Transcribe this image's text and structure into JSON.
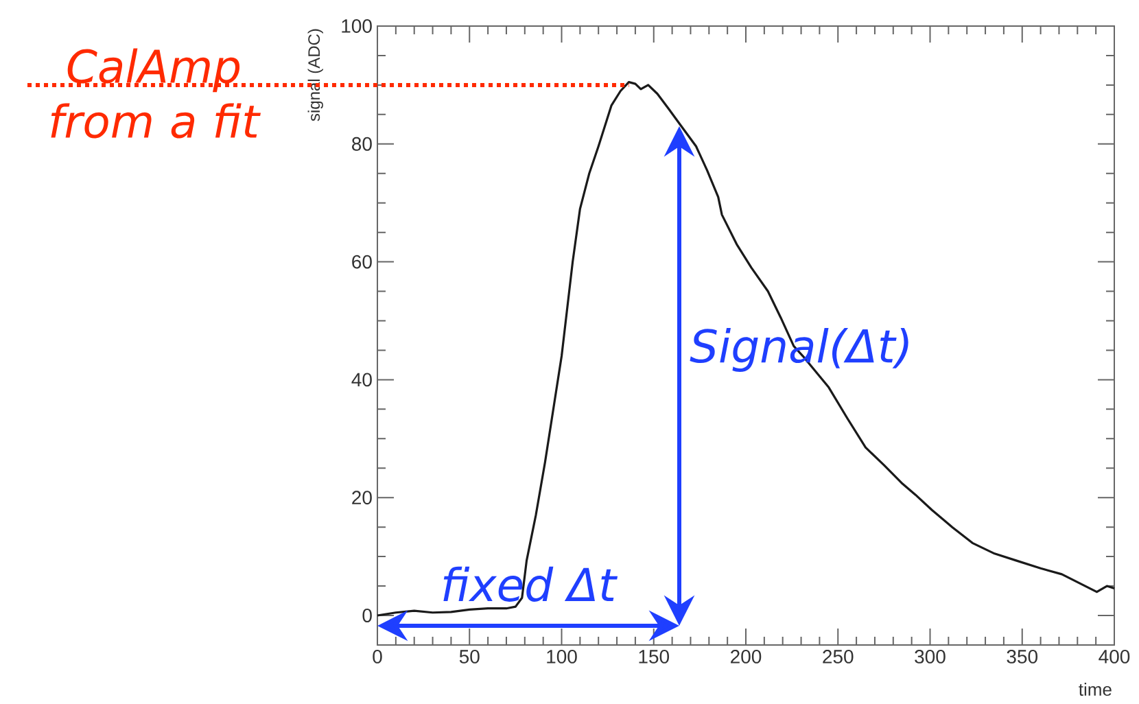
{
  "chart_data": {
    "type": "line",
    "xlabel": "time",
    "ylabel": "signal (ADC)",
    "x": [
      0,
      10,
      20,
      30,
      40,
      50,
      60,
      70,
      75,
      78.5,
      81,
      86,
      91,
      96,
      100,
      103,
      106,
      110,
      115,
      120,
      127,
      132,
      136.5,
      140,
      143,
      147,
      152,
      158,
      165,
      173,
      179,
      185,
      187,
      195,
      203,
      212,
      219,
      226,
      231,
      245,
      255,
      265,
      275,
      284.5,
      292,
      301,
      312,
      323,
      335,
      347,
      360,
      371.5,
      381,
      390.5,
      396,
      400
    ],
    "series": [
      {
        "color": "#1a1a1a",
        "values": [
          0,
          0.5,
          0.8,
          0.5,
          0.6,
          1,
          1.2,
          1.2,
          1.5,
          3,
          9.3,
          17,
          26,
          36,
          44,
          52,
          60,
          69,
          75,
          79.6,
          86.5,
          89,
          90.5,
          90.2,
          89.3,
          90,
          88.5,
          86,
          83,
          79.6,
          75.5,
          71,
          68,
          63,
          59,
          55,
          50.5,
          45.7,
          44,
          38.7,
          33.5,
          28.5,
          25.5,
          22.5,
          20.5,
          17.9,
          15,
          12.3,
          10.5,
          9.3,
          8,
          7,
          5.5,
          4,
          5,
          4.6
        ]
      }
    ],
    "xlim": [
      0,
      400
    ],
    "ylim": [
      -5,
      100
    ],
    "xticks": [
      0,
      50,
      100,
      150,
      200,
      250,
      300,
      350,
      400
    ],
    "yticks": [
      0,
      20,
      40,
      60,
      80,
      100
    ],
    "grid": false,
    "line_style": "solid",
    "marker": "none",
    "ref_lines": [
      {
        "axis": "y",
        "value": 90,
        "label": "CalAmp from a fit",
        "color": "#ff2a00",
        "line_style": "dotted"
      }
    ],
    "annotations": [
      "Signal(Δt)",
      "fixed Δt"
    ]
  }
}
